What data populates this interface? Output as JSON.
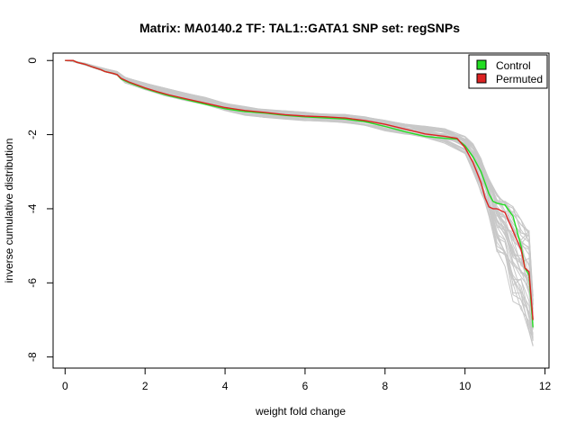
{
  "chart_data": {
    "type": "line",
    "title": "Matrix: MA0140.2 TF: TAL1::GATA1 SNP set: regSNPs",
    "xlabel": "weight fold change",
    "ylabel": "inverse cumulative distribution",
    "xlim": [
      -0.3,
      12.1
    ],
    "ylim": [
      -8.3,
      0.2
    ],
    "xticks": [
      0,
      2,
      4,
      6,
      8,
      10,
      12
    ],
    "yticks": [
      0,
      -2,
      -4,
      -6,
      -8
    ],
    "grid": false,
    "legend_position": "top-right",
    "legend": [
      {
        "label": "Control",
        "color": "#22dd22"
      },
      {
        "label": "Permuted",
        "color": "#dd2222"
      }
    ],
    "background_band": {
      "description_color": "#c8c8c8",
      "num_lines": 40,
      "x": [
        0.0,
        0.2,
        0.5,
        1.0,
        1.3,
        1.5,
        2.0,
        2.5,
        3.0,
        3.5,
        4.0,
        4.5,
        5.0,
        5.5,
        6.0,
        6.5,
        7.0,
        7.5,
        8.0,
        8.5,
        9.0,
        9.5,
        10.0,
        10.2,
        10.4,
        10.6,
        10.8,
        11.0,
        11.2,
        11.4,
        11.6,
        11.7
      ],
      "y_upper": [
        0.0,
        -0.02,
        -0.08,
        -0.22,
        -0.3,
        -0.45,
        -0.6,
        -0.75,
        -0.88,
        -1.0,
        -1.15,
        -1.25,
        -1.32,
        -1.36,
        -1.4,
        -1.42,
        -1.46,
        -1.52,
        -1.62,
        -1.72,
        -1.78,
        -1.85,
        -2.05,
        -2.25,
        -2.65,
        -3.2,
        -3.6,
        -3.8,
        -3.95,
        -4.3,
        -4.6,
        -6.2
      ],
      "y_lower": [
        0.0,
        -0.02,
        -0.12,
        -0.3,
        -0.4,
        -0.6,
        -0.8,
        -0.95,
        -1.08,
        -1.2,
        -1.35,
        -1.5,
        -1.55,
        -1.58,
        -1.62,
        -1.65,
        -1.7,
        -1.78,
        -1.9,
        -2.0,
        -2.1,
        -2.25,
        -2.55,
        -3.0,
        -3.6,
        -4.2,
        -5.2,
        -5.6,
        -6.5,
        -7.0,
        -7.5,
        -7.9
      ]
    },
    "series": [
      {
        "name": "Control",
        "color": "#22dd22",
        "x": [
          0.0,
          0.2,
          0.3,
          0.5,
          0.7,
          0.9,
          1.0,
          1.2,
          1.3,
          1.4,
          1.6,
          1.8,
          2.0,
          2.3,
          2.6,
          3.0,
          3.5,
          4.0,
          4.5,
          5.0,
          5.5,
          6.0,
          6.5,
          7.0,
          7.5,
          8.0,
          8.5,
          9.0,
          9.5,
          9.8,
          10.0,
          10.2,
          10.4,
          10.5,
          10.6,
          10.7,
          10.8,
          11.0,
          11.2,
          11.4,
          11.5,
          11.6,
          11.7
        ],
        "y": [
          0.0,
          0.0,
          -0.05,
          -0.1,
          -0.18,
          -0.25,
          -0.3,
          -0.35,
          -0.38,
          -0.5,
          -0.6,
          -0.68,
          -0.76,
          -0.86,
          -0.95,
          -1.05,
          -1.18,
          -1.3,
          -1.38,
          -1.42,
          -1.48,
          -1.52,
          -1.55,
          -1.58,
          -1.65,
          -1.78,
          -1.92,
          -2.05,
          -2.1,
          -2.12,
          -2.3,
          -2.6,
          -3.0,
          -3.3,
          -3.6,
          -3.8,
          -3.85,
          -3.9,
          -4.2,
          -5.0,
          -5.6,
          -5.8,
          -7.2
        ]
      },
      {
        "name": "Permuted",
        "color": "#dd2222",
        "x": [
          0.0,
          0.2,
          0.3,
          0.5,
          0.7,
          0.9,
          1.0,
          1.2,
          1.3,
          1.4,
          1.6,
          1.8,
          2.0,
          2.3,
          2.6,
          3.0,
          3.5,
          4.0,
          4.5,
          5.0,
          5.5,
          6.0,
          6.5,
          7.0,
          7.5,
          8.0,
          8.5,
          9.0,
          9.5,
          9.8,
          10.0,
          10.2,
          10.4,
          10.5,
          10.6,
          10.7,
          10.8,
          11.0,
          11.2,
          11.4,
          11.5,
          11.6,
          11.7
        ],
        "y": [
          0.0,
          0.0,
          -0.05,
          -0.1,
          -0.18,
          -0.25,
          -0.3,
          -0.35,
          -0.38,
          -0.48,
          -0.58,
          -0.66,
          -0.74,
          -0.84,
          -0.93,
          -1.03,
          -1.15,
          -1.27,
          -1.35,
          -1.4,
          -1.46,
          -1.5,
          -1.52,
          -1.55,
          -1.62,
          -1.72,
          -1.85,
          -1.98,
          -2.05,
          -2.1,
          -2.35,
          -2.75,
          -3.3,
          -3.7,
          -3.95,
          -4.0,
          -4.0,
          -4.1,
          -4.6,
          -5.1,
          -5.6,
          -5.7,
          -7.0
        ]
      }
    ]
  }
}
